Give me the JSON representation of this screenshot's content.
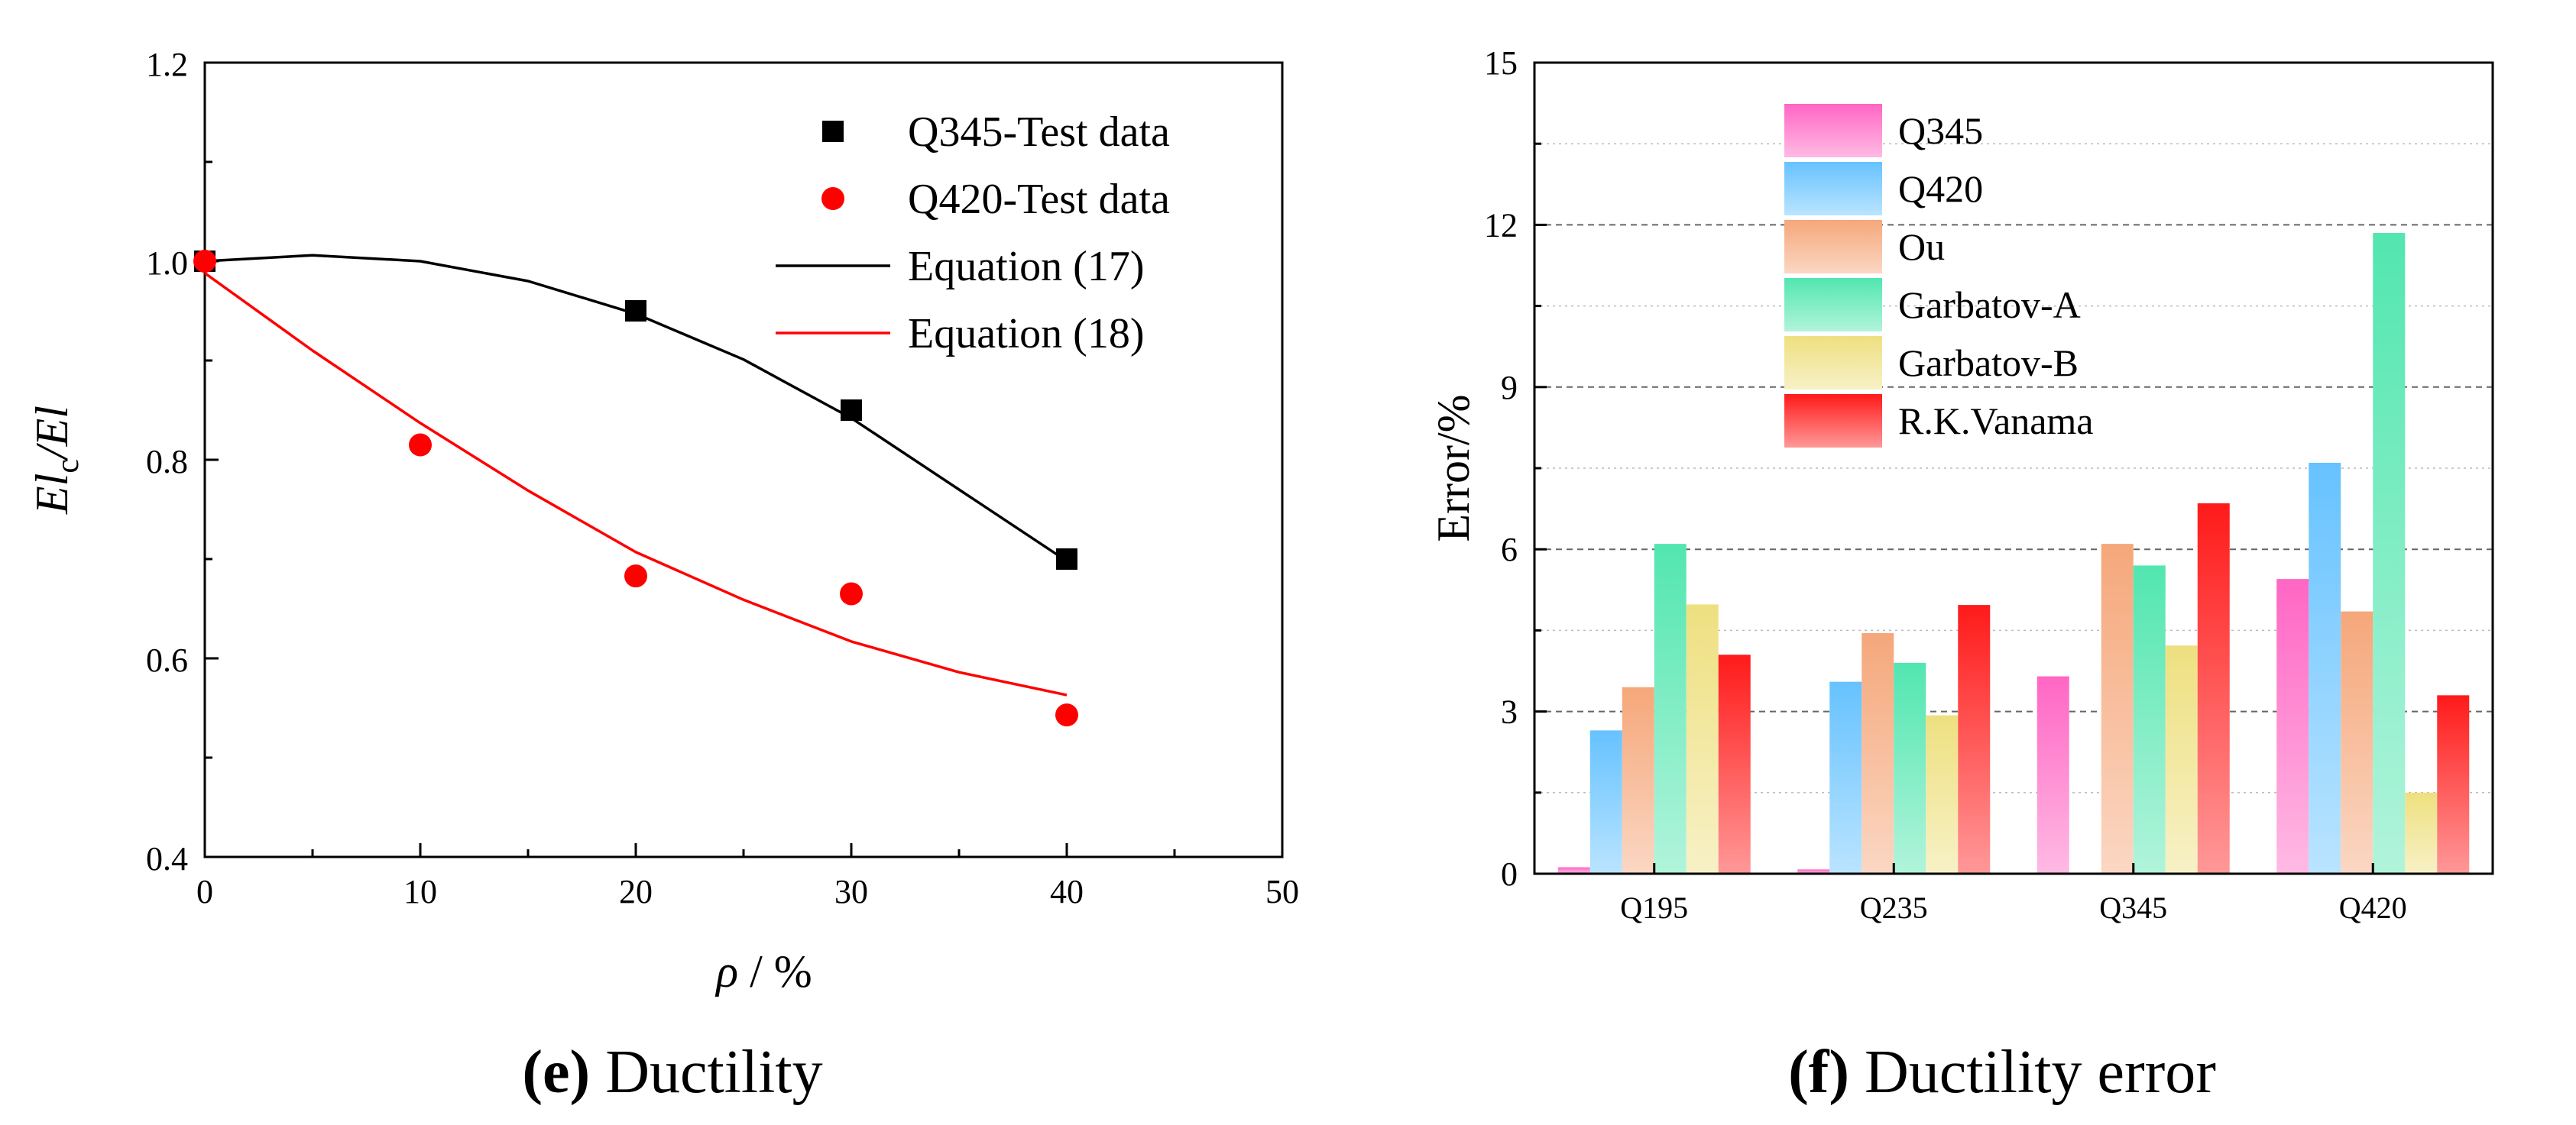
{
  "chart_data": [
    {
      "type": "scatter",
      "panel": "e",
      "caption_letter": "(e)",
      "caption_text": "Ductility",
      "xlabel_sym": "ρ",
      "xlabel_unit": " / %",
      "ylabel_a": "El",
      "ylabel_sub": "c",
      "ylabel_b": "/El",
      "xlim": [
        0,
        50
      ],
      "ylim": [
        0.4,
        1.2
      ],
      "xticks": [
        "0",
        "10",
        "20",
        "30",
        "40",
        "50"
      ],
      "yticks": [
        "0.4",
        "0.6",
        "0.8",
        "1.0",
        "1.2"
      ],
      "series": [
        {
          "name": "Q345-Test data",
          "marker": "square",
          "color": "#000000",
          "x": [
            0,
            20,
            30,
            40
          ],
          "y": [
            1.0,
            0.95,
            0.85,
            0.7
          ]
        },
        {
          "name": "Q420-Test data",
          "marker": "circle",
          "color": "#ff0000",
          "x": [
            0,
            10,
            20,
            30,
            40
          ],
          "y": [
            1.0,
            0.815,
            0.683,
            0.665,
            0.543
          ]
        },
        {
          "name": "Equation (17)",
          "marker": "line",
          "color": "#000000",
          "x": [
            0,
            5,
            10,
            15,
            20,
            25,
            30,
            35,
            40
          ],
          "y": [
            1.0,
            1.006,
            1.0,
            0.98,
            0.947,
            0.901,
            0.842,
            0.77,
            0.698
          ]
        },
        {
          "name": "Equation (18)",
          "marker": "line",
          "color": "#ff0000",
          "x": [
            0,
            5,
            10,
            15,
            20,
            25,
            30,
            35,
            40
          ],
          "y": [
            0.988,
            0.91,
            0.837,
            0.769,
            0.707,
            0.659,
            0.617,
            0.586,
            0.563
          ]
        }
      ]
    },
    {
      "type": "bar",
      "panel": "f",
      "caption_letter": "(f)",
      "caption_text": "Ductility error",
      "ylabel": "Error/%",
      "ylim": [
        0,
        15
      ],
      "yticks": [
        "0",
        "3",
        "6",
        "9",
        "12",
        "15"
      ],
      "grid": true,
      "categories": [
        "Q195",
        "Q235",
        "Q345",
        "Q420"
      ],
      "series": [
        {
          "name": "Q345",
          "color": "#ff66c4",
          "values": [
            0.12,
            0.08,
            3.65,
            5.45
          ]
        },
        {
          "name": "Q420",
          "color": "#66c2ff",
          "values": [
            2.65,
            3.55,
            0.0,
            7.6
          ]
        },
        {
          "name": "Ou",
          "color": "#f5a77a",
          "values": [
            3.45,
            4.45,
            6.1,
            4.85
          ]
        },
        {
          "name": "Garbatov-A",
          "color": "#52e6b0",
          "values": [
            6.1,
            3.9,
            5.7,
            11.85
          ]
        },
        {
          "name": "Garbatov-B",
          "color": "#eee080",
          "values": [
            4.98,
            2.93,
            4.22,
            1.5
          ]
        },
        {
          "name": "R.K.Vanama",
          "color": "#ff1a1a",
          "values": [
            4.05,
            4.97,
            6.85,
            3.3
          ]
        }
      ]
    }
  ]
}
